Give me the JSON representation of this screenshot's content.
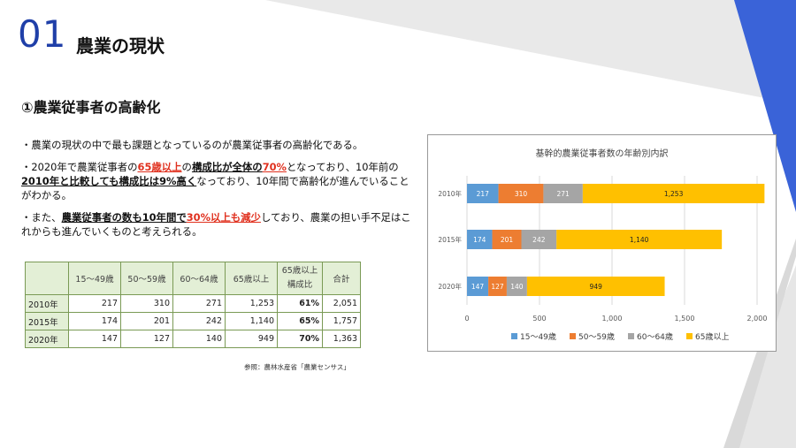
{
  "slide": {
    "number": "01",
    "title": "農業の現状",
    "subheading": "①農業従事者の高齢化"
  },
  "bullets": [
    {
      "text": "・農業の現状の中で最も課題となっているのが農業従事者の高齢化である。"
    },
    {
      "p1": "・2020年で農業従事者の",
      "h1": "65歳以上",
      "p2": "の",
      "h2": "構成比が全体の",
      "h3": "70%",
      "p3": "となっており、10年前の",
      "h4": "2010年と比較しても構成比は9%高く",
      "p4": "なっており、10年間で高齢化が進んでいることがわかる。"
    },
    {
      "p1": "・また、",
      "h1": "農業従事者の数も10年間で",
      "h2": "30%以上も減少",
      "p2": "しており、農業の担い手不足はこれからも進んでいくものと考えられる。"
    }
  ],
  "table": {
    "headers": [
      "",
      "15～49歳",
      "50～59歳",
      "60～64歳",
      "65歳以上",
      "65歳以上\n構成比",
      "合計"
    ],
    "rows": [
      [
        "2010年",
        "217",
        "310",
        "271",
        "1,253",
        "61%",
        "2,051"
      ],
      [
        "2015年",
        "174",
        "201",
        "242",
        "1,140",
        "65%",
        "1,757"
      ],
      [
        "2020年",
        "147",
        "127",
        "140",
        "949",
        "70%",
        "1,363"
      ]
    ]
  },
  "source": "参照：農林水産省「農業センサス」",
  "chart_data": {
    "type": "bar",
    "orientation": "horizontal",
    "stacked": true,
    "title": "基幹的農業従事者数の年齢別内訳",
    "categories": [
      "2010年",
      "2015年",
      "2020年"
    ],
    "series": [
      {
        "name": "15～49歳",
        "values": [
          217,
          174,
          147
        ],
        "color": "#5b9bd5"
      },
      {
        "name": "50～59歳",
        "values": [
          310,
          201,
          127
        ],
        "color": "#ed7d31"
      },
      {
        "name": "60～64歳",
        "values": [
          271,
          242,
          140
        ],
        "color": "#a5a5a5"
      },
      {
        "name": "65歳以上",
        "values": [
          1253,
          1140,
          949
        ],
        "color": "#ffc000"
      }
    ],
    "xlim": [
      0,
      2000
    ],
    "xticks": [
      "0",
      "500",
      "1,000",
      "1,500",
      "2,000"
    ],
    "grid": true,
    "legend": "bottom",
    "labels": [
      [
        "217",
        "310",
        "271",
        "1,253"
      ],
      [
        "174",
        "201",
        "242",
        "1,140"
      ],
      [
        "147",
        "127",
        "140",
        "949"
      ]
    ]
  },
  "colors": {
    "accent_blue": "#1f3fa8",
    "deco_blue": "#3a63d8",
    "table_header_bg": "#e3efd6"
  }
}
